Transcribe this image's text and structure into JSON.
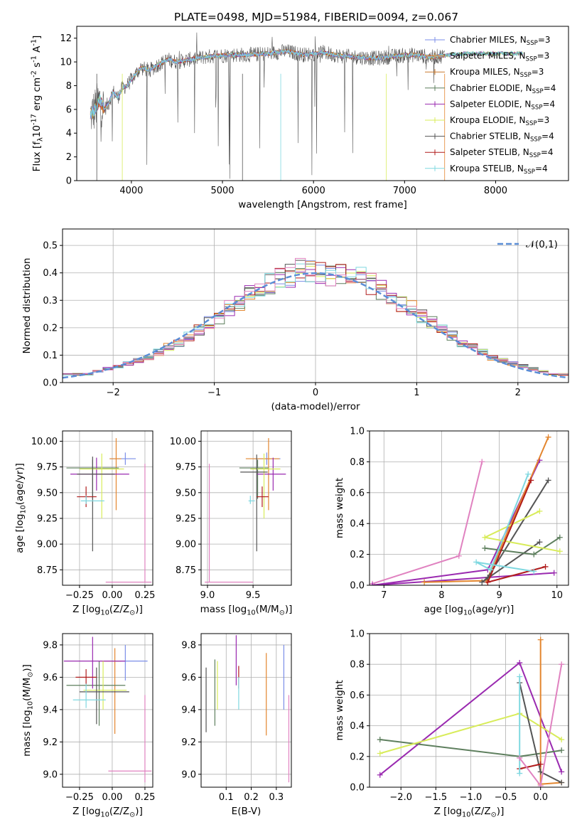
{
  "chart_data": [
    {
      "type": "line",
      "title": "PLATE=0498, MJD=51984, FIBERID=0094, z=0.067",
      "xlabel": "wavelength [Angstrom, rest frame]",
      "ylabel": "Flux [f$_\\lambda$10$^{-17}$ erg cm$^{-2}$ s$^{-1}$ A$^{-1}$]",
      "xlim": [
        3400,
        8800
      ],
      "ylim": [
        0,
        13
      ],
      "xticks": [
        4000,
        5000,
        6000,
        7000,
        8000
      ],
      "yticks": [
        0,
        2,
        4,
        6,
        8,
        10,
        12
      ],
      "grid": false,
      "legend": "top-right",
      "x": [
        3550,
        3600,
        3650,
        3700,
        3750,
        3800,
        3850,
        3900,
        3950,
        4000,
        4100,
        4200,
        4300,
        4400,
        4500,
        4700,
        4900,
        5100,
        5300,
        5500,
        5700,
        5900,
        6100,
        6300,
        6500,
        6700,
        6900,
        7100,
        7300,
        7500,
        7700
      ],
      "series": [
        {
          "name": "Chabrier MILES, N$_{SSP}$=3",
          "color": "#7b8ee8"
        },
        {
          "name": "Salpeter MILES, N$_{SSP}$=3",
          "color": "#e3862f"
        },
        {
          "name": "Kroupa MILES, N$_{SSP}$=3",
          "color": "#c9782d"
        },
        {
          "name": "Chabrier ELODIE, N$_{SSP}$=4",
          "color": "#5e7f5e"
        },
        {
          "name": "Salpeter ELODIE, N$_{SSP}$=4",
          "color": "#9a2ab0"
        },
        {
          "name": "Kroupa ELODIE, N$_{SSP}$=3",
          "color": "#d8ec5a"
        },
        {
          "name": "Chabrier STELIB, N$_{SSP}$=4",
          "color": "#555555"
        },
        {
          "name": "Salpeter STELIB, N$_{SSP}$=4",
          "color": "#b01c1c"
        },
        {
          "name": "Kroupa STELIB, N$_{SSP}$=4",
          "color": "#7fd8e0",
          "values": [
            5.5,
            6.0,
            6.8,
            6.0,
            6.5,
            7.5,
            7.0,
            7.8,
            8.0,
            8.5,
            9.5,
            9.3,
            9.8,
            10.2,
            10.0,
            10.3,
            10.5,
            10.6,
            10.6,
            10.7,
            10.9,
            10.6,
            10.8,
            10.5,
            10.4,
            10.3,
            10.5,
            10.6,
            10.4,
            10.6,
            10.7
          ]
        }
      ]
    },
    {
      "type": "line",
      "xlabel": "(data-model)/error",
      "ylabel": "Normed distribution",
      "xlim": [
        -2.5,
        2.5
      ],
      "ylim": [
        0,
        0.56
      ],
      "xticks": [
        -2,
        -1,
        0,
        1,
        2
      ],
      "yticks": [
        0.0,
        0.1,
        0.2,
        0.3,
        0.4,
        0.5
      ],
      "grid": true,
      "legend": "top-right",
      "series": [
        {
          "name": "$\\mathcal{N}(0,1)$",
          "color": "#5b8ed6",
          "style": "dashed",
          "mean": 0,
          "sigma": 1
        }
      ],
      "histogram_colors": [
        "#7b8ee8",
        "#e3862f",
        "#5e7f5e",
        "#9a2ab0",
        "#d8ec5a",
        "#555555",
        "#b01c1c",
        "#7fd8e0",
        "#e082c0"
      ],
      "hist_bins": [
        -2.5,
        -2.4,
        -2.3,
        -2.2,
        -2.1,
        -2.0,
        -1.9,
        -1.8,
        -1.7,
        -1.6,
        -1.5,
        -1.4,
        -1.3,
        -1.2,
        -1.1,
        -1.0,
        -0.9,
        -0.8,
        -0.7,
        -0.6,
        -0.5,
        -0.4,
        -0.3,
        -0.2,
        -0.1,
        0.0,
        0.1,
        0.2,
        0.3,
        0.4,
        0.5,
        0.6,
        0.7,
        0.8,
        0.9,
        1.0,
        1.1,
        1.2,
        1.3,
        1.4,
        1.5,
        1.6,
        1.7,
        1.8,
        1.9,
        2.0,
        2.1,
        2.2,
        2.3,
        2.4,
        2.5
      ],
      "hist_example": [
        0.03,
        0.03,
        0.03,
        0.04,
        0.05,
        0.06,
        0.07,
        0.08,
        0.09,
        0.11,
        0.13,
        0.14,
        0.17,
        0.19,
        0.22,
        0.24,
        0.27,
        0.29,
        0.32,
        0.34,
        0.36,
        0.38,
        0.39,
        0.41,
        0.4,
        0.4,
        0.39,
        0.4,
        0.39,
        0.38,
        0.36,
        0.34,
        0.32,
        0.29,
        0.27,
        0.24,
        0.22,
        0.19,
        0.17,
        0.14,
        0.13,
        0.11,
        0.09,
        0.08,
        0.07,
        0.06,
        0.05,
        0.04,
        0.03,
        0.03
      ]
    },
    {
      "type": "scatter",
      "xlabel": "Z [log$_{10}$(Z/Z$_\\odot$)]",
      "ylabel": "age  [log$_{10}$(age/yr)]",
      "xlim": [
        -0.38,
        0.31
      ],
      "ylim": [
        8.6,
        10.1
      ],
      "xticks": [
        -0.25,
        0.0,
        0.25
      ],
      "yticks": [
        8.75,
        9.0,
        9.25,
        9.5,
        9.75,
        10.0
      ],
      "grid": true,
      "points": [
        {
          "color": "#7b8ee8",
          "x": 0.1,
          "xerr": [
            0.12,
            0.08
          ],
          "y": 9.83,
          "yerr": [
            0.06,
            0.06
          ]
        },
        {
          "color": "#e3862f",
          "x": 0.03,
          "xerr": [
            0.05,
            0.04
          ],
          "y": 9.83,
          "yerr": [
            0.5,
            0.2
          ]
        },
        {
          "color": "#5e7f5e",
          "x": -0.15,
          "xerr": [
            0.2,
            0.2
          ],
          "y": 9.74,
          "yerr": [
            0.3,
            0.08
          ]
        },
        {
          "color": "#9a2ab0",
          "x": -0.12,
          "xerr": [
            0.2,
            0.25
          ],
          "y": 9.68,
          "yerr": [
            0.16,
            0.16
          ]
        },
        {
          "color": "#d8ec5a",
          "x": -0.08,
          "xerr": [
            0.17,
            0.17
          ],
          "y": 9.73,
          "yerr": [
            0.48,
            0.15
          ]
        },
        {
          "color": "#555555",
          "x": -0.15,
          "xerr": [
            0.12,
            0.17
          ],
          "y": 9.68,
          "yerr": [
            0.75,
            0.17
          ]
        },
        {
          "color": "#b01c1c",
          "x": -0.2,
          "xerr": [
            0.07,
            0.08
          ],
          "y": 9.46,
          "yerr": [
            0.1,
            0.1
          ]
        },
        {
          "color": "#7fd8e0",
          "x": -0.2,
          "xerr": [
            0.04,
            0.14
          ],
          "y": 9.42,
          "yerr": [
            0.03,
            0.05
          ]
        },
        {
          "color": "#e082c0",
          "x": 0.25,
          "xerr": [
            0.3,
            0.05
          ],
          "y": 8.63,
          "yerr": [
            0.0,
            1.15
          ]
        }
      ]
    },
    {
      "type": "scatter",
      "xlabel": "mass [log$_{10}$(M/M$_\\odot$)]",
      "xlim": [
        8.93,
        9.92
      ],
      "ylim": [
        8.6,
        10.1
      ],
      "xticks": [
        9.0,
        9.5
      ],
      "yticks": [
        8.75,
        9.0,
        9.25,
        9.5,
        9.75,
        10.0
      ],
      "grid": true,
      "points": [
        {
          "color": "#7b8ee8",
          "x": 9.65,
          "xerr": [
            0.15,
            0.15
          ],
          "y": 9.83,
          "yerr": [
            0.06,
            0.06
          ]
        },
        {
          "color": "#e3862f",
          "x": 9.67,
          "xerr": [
            0.25,
            0.12
          ],
          "y": 9.83,
          "yerr": [
            0.5,
            0.2
          ]
        },
        {
          "color": "#5e7f5e",
          "x": 9.55,
          "xerr": [
            0.2,
            0.12
          ],
          "y": 9.74,
          "yerr": [
            0.3,
            0.08
          ]
        },
        {
          "color": "#9a2ab0",
          "x": 9.72,
          "xerr": [
            0.18,
            0.14
          ],
          "y": 9.68,
          "yerr": [
            0.16,
            0.16
          ]
        },
        {
          "color": "#d8ec5a",
          "x": 9.62,
          "xerr": [
            0.15,
            0.18
          ],
          "y": 9.73,
          "yerr": [
            0.48,
            0.15
          ]
        },
        {
          "color": "#555555",
          "x": 9.54,
          "xerr": [
            0.18,
            0.12
          ],
          "y": 9.7,
          "yerr": [
            0.77,
            0.17
          ]
        },
        {
          "color": "#b01c1c",
          "x": 9.6,
          "xerr": [
            0.06,
            0.07
          ],
          "y": 9.46,
          "yerr": [
            0.1,
            0.1
          ]
        },
        {
          "color": "#7fd8e0",
          "x": 9.47,
          "xerr": [
            0.02,
            0.05
          ],
          "y": 9.42,
          "yerr": [
            0.03,
            0.05
          ]
        },
        {
          "color": "#e082c0",
          "x": 9.02,
          "xerr": [
            0.05,
            0.48
          ],
          "y": 8.63,
          "yerr": [
            0.0,
            1.15
          ]
        }
      ]
    },
    {
      "type": "line",
      "xlabel": "age  [log$_{10}$(age/yr)]",
      "ylabel": "mass weight",
      "xlim": [
        6.75,
        10.2
      ],
      "ylim": [
        0,
        1.0
      ],
      "xticks": [
        7,
        8,
        9,
        10
      ],
      "yticks": [
        0.0,
        0.2,
        0.4,
        0.6,
        0.8,
        1.0
      ],
      "grid": true,
      "series": [
        {
          "color": "#e082c0",
          "x": [
            8.7,
            8.3,
            6.8
          ],
          "values": [
            0.8,
            0.19,
            0.01
          ]
        },
        {
          "color": "#9a2ab0",
          "x": [
            9.7,
            8.8,
            6.8,
            9.95
          ],
          "values": [
            0.81,
            0.1,
            0.0,
            0.08
          ]
        },
        {
          "color": "#e3862f",
          "x": [
            9.85,
            8.78,
            7.7
          ],
          "values": [
            0.96,
            0.03,
            0.02
          ]
        },
        {
          "color": "#555555",
          "x": [
            9.85,
            8.8,
            8.7,
            9.7
          ],
          "values": [
            0.68,
            0.05,
            0.02,
            0.28
          ]
        },
        {
          "color": "#5e7f5e",
          "x": [
            10.05,
            9.6,
            8.75
          ],
          "values": [
            0.31,
            0.2,
            0.24
          ]
        },
        {
          "color": "#d8ec5a",
          "x": [
            9.7,
            8.75,
            10.05
          ],
          "values": [
            0.48,
            0.31,
            0.22
          ]
        },
        {
          "color": "#b01c1c",
          "x": [
            9.55,
            8.8,
            9.8
          ],
          "values": [
            0.68,
            0.02,
            0.12
          ]
        },
        {
          "color": "#7fd8e0",
          "x": [
            9.5,
            8.85,
            8.6,
            9.6
          ],
          "values": [
            0.72,
            0.1,
            0.15,
            0.09
          ]
        }
      ]
    },
    {
      "type": "scatter",
      "xlabel": "Z [log$_{10}$(Z/Z$_\\odot$)]",
      "ylabel": "mass [log$_{10}$(M/M$_\\odot$)]",
      "xlim": [
        -0.38,
        0.31
      ],
      "ylim": [
        8.92,
        9.87
      ],
      "xticks": [
        -0.25,
        0.0,
        0.25
      ],
      "yticks": [
        9.0,
        9.2,
        9.4,
        9.6,
        9.8
      ],
      "grid": true,
      "points": [
        {
          "color": "#7b8ee8",
          "x": 0.1,
          "xerr": [
            0.1,
            0.17
          ],
          "y": 9.7,
          "yerr": [
            0.12,
            0.1
          ]
        },
        {
          "color": "#e3862f",
          "x": 0.02,
          "xerr": [
            0.1,
            0.05
          ],
          "y": 9.7,
          "yerr": [
            0.45,
            0.08
          ]
        },
        {
          "color": "#5e7f5e",
          "x": -0.1,
          "xerr": [
            0.25,
            0.2
          ],
          "y": 9.55,
          "yerr": [
            0.25,
            0.15
          ]
        },
        {
          "color": "#9a2ab0",
          "x": -0.15,
          "xerr": [
            0.22,
            0.25
          ],
          "y": 9.7,
          "yerr": [
            0.17,
            0.15
          ]
        },
        {
          "color": "#d8ec5a",
          "x": -0.07,
          "xerr": [
            0.15,
            0.18
          ],
          "y": 9.52,
          "yerr": [
            0.12,
            0.18
          ]
        },
        {
          "color": "#555555",
          "x": -0.12,
          "xerr": [
            0.13,
            0.25
          ],
          "y": 9.51,
          "yerr": [
            0.2,
            0.15
          ]
        },
        {
          "color": "#b01c1c",
          "x": -0.2,
          "xerr": [
            0.08,
            0.08
          ],
          "y": 9.6,
          "yerr": [
            0.05,
            0.05
          ]
        },
        {
          "color": "#7fd8e0",
          "x": -0.2,
          "xerr": [
            0.1,
            0.15
          ],
          "y": 9.46,
          "yerr": [
            0.05,
            0.1
          ]
        },
        {
          "color": "#e082c0",
          "x": 0.25,
          "xerr": [
            0.28,
            0.05
          ],
          "y": 9.02,
          "yerr": [
            0.07,
            0.47
          ]
        }
      ]
    },
    {
      "type": "scatter",
      "xlabel": "E(B-V)",
      "xlim": [
        0.0,
        0.36
      ],
      "ylim": [
        8.92,
        9.87
      ],
      "xticks": [
        0.1,
        0.2,
        0.3
      ],
      "yticks": [
        9.0,
        9.2,
        9.4,
        9.6,
        9.8
      ],
      "grid": true,
      "points": [
        {
          "color": "#7b8ee8",
          "x": 0.33,
          "y": 9.55,
          "yerr": [
            0.15,
            0.25
          ]
        },
        {
          "color": "#e3862f",
          "x": 0.26,
          "y": 9.5,
          "yerr": [
            0.26,
            0.25
          ]
        },
        {
          "color": "#5e7f5e",
          "x": 0.055,
          "y": 9.55,
          "yerr": [
            0.25,
            0.16
          ]
        },
        {
          "color": "#9a2ab0",
          "x": 0.14,
          "y": 9.7,
          "yerr": [
            0.15,
            0.16
          ]
        },
        {
          "color": "#d8ec5a",
          "x": 0.065,
          "y": 9.52,
          "yerr": [
            0.12,
            0.18
          ]
        },
        {
          "color": "#555555",
          "x": 0.02,
          "y": 9.46,
          "yerr": [
            0.2,
            0.2
          ]
        },
        {
          "color": "#b01c1c",
          "x": 0.15,
          "y": 9.6,
          "yerr": [
            0.07,
            0.07
          ]
        },
        {
          "color": "#7fd8e0",
          "x": 0.15,
          "y": 9.5,
          "yerr": [
            0.1,
            0.1
          ]
        },
        {
          "color": "#e082c0",
          "x": 0.35,
          "y": 9.22,
          "yerr": [
            0.27,
            0.27
          ]
        }
      ]
    },
    {
      "type": "line",
      "xlabel": "Z [log$_{10}$(Z/Z$_\\odot$)]",
      "ylabel": "mass weight",
      "xlim": [
        -2.45,
        0.4
      ],
      "ylim": [
        0,
        1.0
      ],
      "xticks": [
        -2.0,
        -1.5,
        -1.0,
        -0.5,
        0.0
      ],
      "yticks": [
        0.0,
        0.2,
        0.4,
        0.6,
        0.8,
        1.0
      ],
      "grid": true,
      "series": [
        {
          "color": "#9a2ab0",
          "x": [
            -2.3,
            -0.3,
            0.3
          ],
          "values": [
            0.08,
            0.81,
            0.1
          ]
        },
        {
          "color": "#5e7f5e",
          "x": [
            -2.3,
            -0.3,
            0.3
          ],
          "values": [
            0.31,
            0.2,
            0.24
          ]
        },
        {
          "color": "#d8ec5a",
          "x": [
            -2.3,
            -0.3,
            0.3
          ],
          "values": [
            0.22,
            0.48,
            0.31
          ]
        },
        {
          "color": "#e3862f",
          "x": [
            0.0,
            0.0,
            0.3
          ],
          "values": [
            0.96,
            0.02,
            0.03
          ]
        },
        {
          "color": "#555555",
          "x": [
            -0.3,
            0.0,
            0.3
          ],
          "values": [
            0.68,
            0.1,
            0.03
          ]
        },
        {
          "color": "#b01c1c",
          "x": [
            -0.3,
            0.0
          ],
          "values": [
            0.12,
            0.15
          ]
        },
        {
          "color": "#7fd8e0",
          "x": [
            -0.3,
            -0.3
          ],
          "values": [
            0.72,
            0.09
          ]
        },
        {
          "color": "#e082c0",
          "x": [
            -0.3,
            0.0,
            0.3
          ],
          "values": [
            0.19,
            0.01,
            0.8
          ]
        }
      ]
    }
  ]
}
